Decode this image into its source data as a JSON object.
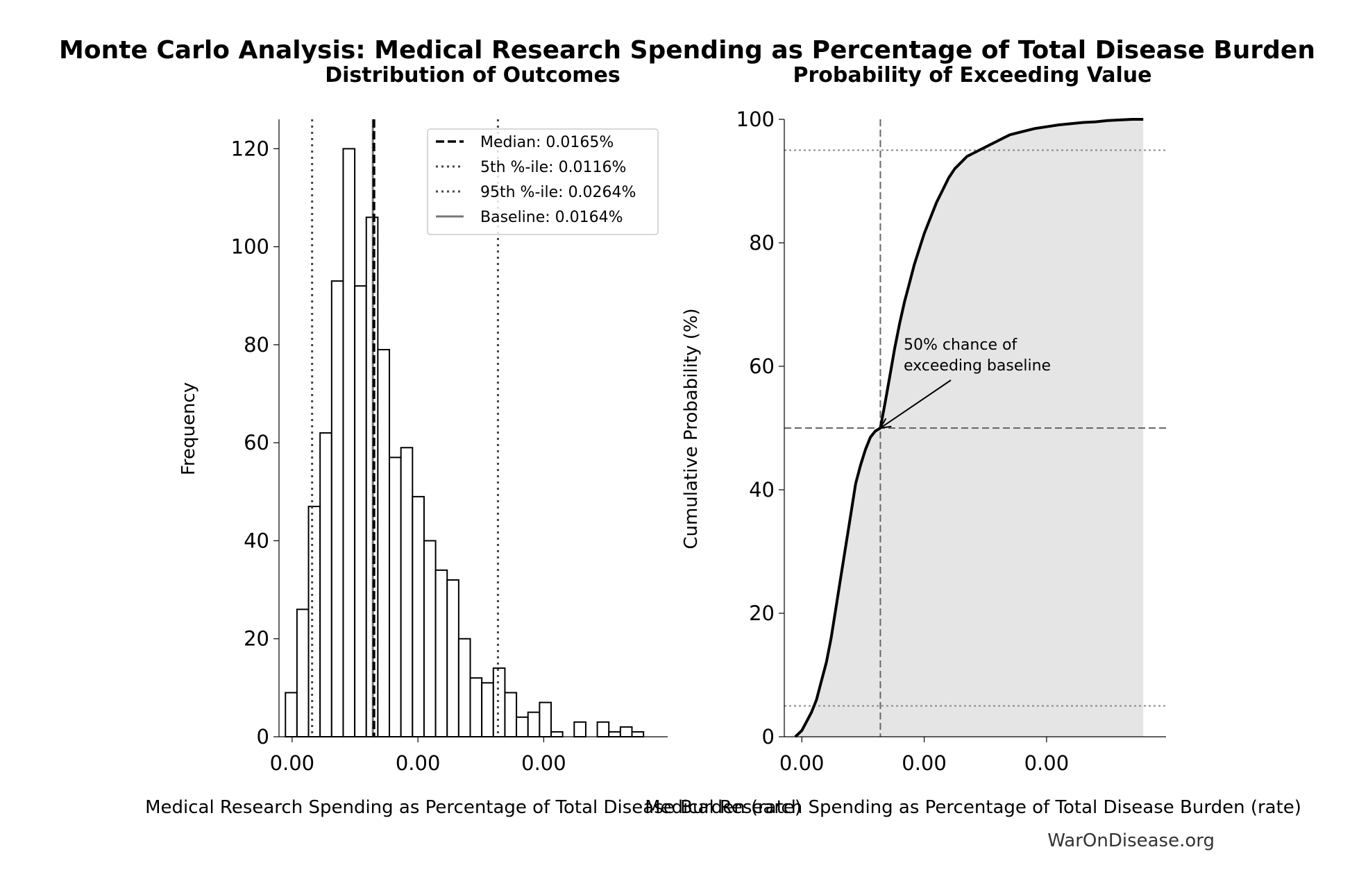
{
  "title": "Monte Carlo Analysis: Medical Research Spending as Percentage of Total Disease Burden",
  "watermark": "WarOnDisease.org",
  "chart_data": [
    {
      "type": "bar",
      "subtitle": "Distribution of Outcomes",
      "xlabel": "Medical Research Spending as Percentage of Total Disease Burden (rate)",
      "ylabel": "Frequency",
      "xlim": [
        8.96e-05,
        0.0003985
      ],
      "ylim": [
        0,
        126
      ],
      "x_ticks": [
        0.0001,
        0.0002,
        0.0003
      ],
      "x_tick_labels": [
        "0.00",
        "0.00",
        "0.00"
      ],
      "y_ticks": [
        0,
        20,
        40,
        60,
        80,
        100,
        120
      ],
      "y_tick_labels": [
        "0",
        "20",
        "40",
        "60",
        "80",
        "100",
        "120"
      ],
      "bin_start": 9.47e-05,
      "bin_width": 9.18e-06,
      "counts": [
        9,
        26,
        47,
        62,
        93,
        120,
        92,
        106,
        79,
        57,
        59,
        49,
        40,
        34,
        32,
        20,
        12,
        11,
        14,
        9,
        4,
        5,
        7,
        1,
        0,
        3,
        0,
        3,
        1,
        2,
        1
      ],
      "reference_lines": [
        {
          "name": "Median: 0.0165%",
          "x": 0.000165,
          "style": "dashed",
          "color": "#000000"
        },
        {
          "name": "5th %-ile: 0.0116%",
          "x": 0.0001159,
          "style": "dotted",
          "color": "#444444"
        },
        {
          "name": "95th %-ile: 0.0264%",
          "x": 0.0002636,
          "style": "dotted",
          "color": "#444444"
        },
        {
          "name": "Baseline: 0.0164%",
          "x": 0.0001642,
          "style": "solid",
          "color": "#777777"
        }
      ],
      "legend": {
        "placement": "upper-right",
        "entries": [
          "Median: 0.0165%",
          "5th %-ile: 0.0116%",
          "95th %-ile: 0.0264%",
          "Baseline: 0.0164%"
        ]
      },
      "grid": false
    },
    {
      "type": "area",
      "subtitle": "Probability of Exceeding Value",
      "xlabel": "Medical Research Spending as Percentage of Total Disease Burden (rate)",
      "ylabel": "Cumulative Probability (%)",
      "xlim": [
        8.57e-05,
        0.0003976
      ],
      "ylim": [
        0,
        100
      ],
      "x_ticks": [
        0.0001,
        0.0002,
        0.0003
      ],
      "x_tick_labels": [
        "0.00",
        "0.00",
        "0.00"
      ],
      "y_ticks": [
        0,
        20,
        40,
        60,
        80,
        100
      ],
      "y_tick_labels": [
        "0",
        "20",
        "40",
        "60",
        "80",
        "100"
      ],
      "curve": {
        "x": [
          9.47e-05,
          0.0001,
          0.000104,
          0.000108,
          0.000112,
          0.000116,
          0.00012,
          0.000124,
          0.000128,
          0.000132,
          0.000136,
          0.00014,
          0.000144,
          0.000148,
          0.000152,
          0.000156,
          0.00016,
          0.0001642,
          0.000168,
          0.000172,
          0.000176,
          0.00018,
          0.000184,
          0.000188,
          0.000192,
          0.000196,
          0.0002,
          0.000205,
          0.00021,
          0.000215,
          0.00022,
          0.000225,
          0.00023,
          0.000235,
          0.00024,
          0.000245,
          0.00025,
          0.000255,
          0.00026,
          0.000265,
          0.00027,
          0.00028,
          0.00029,
          0.0003,
          0.00031,
          0.00032,
          0.00033,
          0.00034,
          0.00035,
          0.00036,
          0.00037,
          0.000379
        ],
        "y": [
          0,
          1,
          2.5,
          4,
          6,
          9,
          12,
          16,
          21,
          26,
          31,
          36,
          41,
          44,
          46.5,
          48.5,
          49.5,
          50,
          54,
          58.5,
          63,
          67,
          70.5,
          73.5,
          76.5,
          79,
          81.5,
          84,
          86.5,
          88.5,
          90.5,
          92,
          93,
          94,
          94.5,
          95,
          95.5,
          96,
          96.5,
          97,
          97.5,
          98,
          98.5,
          98.8,
          99.1,
          99.3,
          99.5,
          99.6,
          99.8,
          99.9,
          100,
          100
        ]
      },
      "reference_lines": [
        {
          "axis": "x",
          "value": 0.0001642,
          "style": "dashed"
        },
        {
          "axis": "y",
          "value": 50,
          "style": "dashed"
        },
        {
          "axis": "y",
          "value": 5,
          "style": "dotted"
        },
        {
          "axis": "y",
          "value": 95,
          "style": "dotted"
        }
      ],
      "annotation": {
        "text_lines": [
          "50% chance of",
          "exceeding baseline"
        ],
        "points_to": {
          "x": 0.0001642,
          "y": 50
        }
      },
      "grid": false
    }
  ]
}
